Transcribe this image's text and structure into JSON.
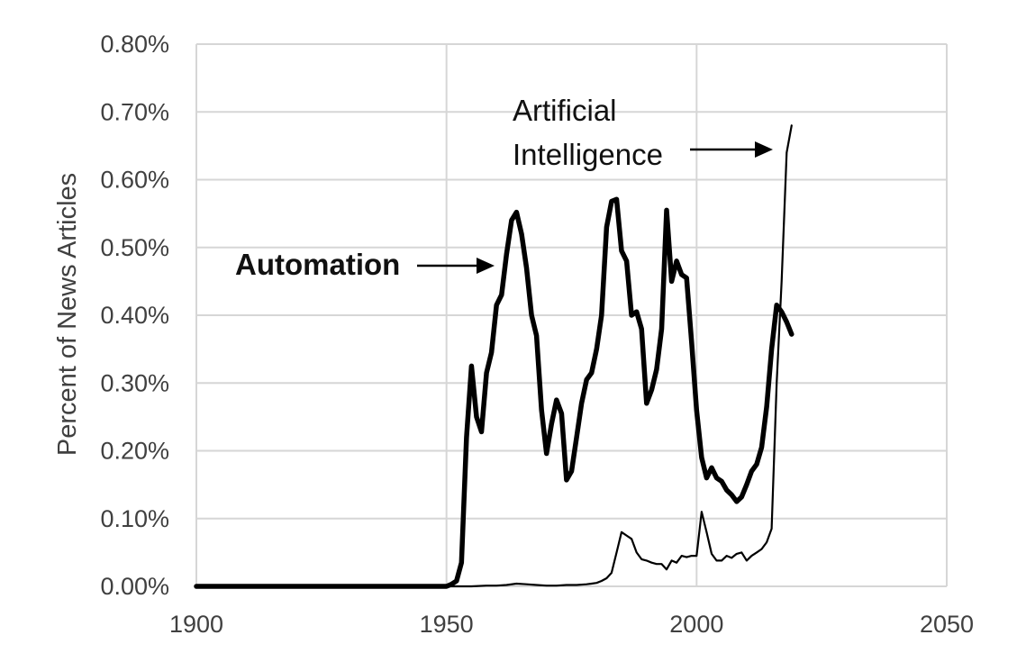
{
  "chart_data": {
    "type": "line",
    "title": "",
    "xlabel": "",
    "ylabel": "Percent of News Articles",
    "xlim": [
      1900,
      2050
    ],
    "ylim": [
      0,
      0.8
    ],
    "x_ticks": [
      1900,
      1950,
      2000,
      2050
    ],
    "y_ticks": [
      0,
      0.1,
      0.2,
      0.3,
      0.4,
      0.5,
      0.6,
      0.7,
      0.8
    ],
    "x_tick_labels": [
      "1900",
      "1950",
      "2000",
      "2050"
    ],
    "y_tick_labels": [
      "0.00%",
      "0.10%",
      "0.20%",
      "0.30%",
      "0.40%",
      "0.50%",
      "0.60%",
      "0.70%",
      "0.80%"
    ],
    "grid": true,
    "legend": "none",
    "annotations": [
      {
        "text": "Automation",
        "series": "Automation"
      },
      {
        "text": "Artificial",
        "series": "Artificial Intelligence"
      },
      {
        "text": "Intelligence",
        "series": "Artificial Intelligence"
      }
    ],
    "series": [
      {
        "name": "Automation",
        "color": "#000000",
        "weight": "thick",
        "x": [
          1900,
          1950,
          1951,
          1952,
          1953,
          1954,
          1955,
          1956,
          1957,
          1958,
          1959,
          1960,
          1961,
          1962,
          1963,
          1964,
          1965,
          1966,
          1967,
          1968,
          1969,
          1970,
          1971,
          1972,
          1973,
          1974,
          1975,
          1976,
          1977,
          1978,
          1979,
          1980,
          1981,
          1982,
          1983,
          1984,
          1985,
          1986,
          1987,
          1988,
          1989,
          1990,
          1991,
          1992,
          1993,
          1994,
          1995,
          1996,
          1997,
          1998,
          1999,
          2000,
          2001,
          2002,
          2003,
          2004,
          2005,
          2006,
          2007,
          2008,
          2009,
          2010,
          2011,
          2012,
          2013,
          2014,
          2015,
          2016,
          2017,
          2018,
          2019
        ],
        "y": [
          0,
          0,
          0.003,
          0.008,
          0.035,
          0.22,
          0.325,
          0.25,
          0.228,
          0.315,
          0.345,
          0.415,
          0.43,
          0.49,
          0.54,
          0.552,
          0.52,
          0.47,
          0.4,
          0.37,
          0.26,
          0.196,
          0.24,
          0.275,
          0.255,
          0.157,
          0.17,
          0.22,
          0.27,
          0.305,
          0.315,
          0.35,
          0.4,
          0.53,
          0.568,
          0.571,
          0.495,
          0.48,
          0.4,
          0.405,
          0.38,
          0.27,
          0.29,
          0.32,
          0.38,
          0.555,
          0.45,
          0.48,
          0.46,
          0.455,
          0.36,
          0.26,
          0.19,
          0.16,
          0.175,
          0.16,
          0.155,
          0.142,
          0.135,
          0.125,
          0.132,
          0.15,
          0.17,
          0.18,
          0.205,
          0.265,
          0.35,
          0.415,
          0.405,
          0.39,
          0.372
        ]
      },
      {
        "name": "Artificial Intelligence",
        "color": "#000000",
        "weight": "thin",
        "x": [
          1900,
          1955,
          1958,
          1960,
          1962,
          1964,
          1966,
          1968,
          1970,
          1972,
          1974,
          1976,
          1978,
          1979,
          1980,
          1981,
          1982,
          1983,
          1984,
          1985,
          1986,
          1987,
          1988,
          1989,
          1990,
          1991,
          1992,
          1993,
          1994,
          1995,
          1996,
          1997,
          1998,
          1999,
          2000,
          2001,
          2002,
          2003,
          2004,
          2005,
          2006,
          2007,
          2008,
          2009,
          2010,
          2011,
          2012,
          2013,
          2014,
          2015,
          2016,
          2017,
          2018,
          2019
        ],
        "y": [
          0,
          0,
          0.001,
          0.001,
          0.002,
          0.004,
          0.003,
          0.002,
          0.001,
          0.001,
          0.002,
          0.002,
          0.003,
          0.004,
          0.005,
          0.008,
          0.012,
          0.02,
          0.05,
          0.08,
          0.075,
          0.07,
          0.05,
          0.04,
          0.038,
          0.035,
          0.033,
          0.033,
          0.025,
          0.038,
          0.035,
          0.045,
          0.043,
          0.045,
          0.045,
          0.11,
          0.08,
          0.048,
          0.038,
          0.038,
          0.045,
          0.042,
          0.048,
          0.05,
          0.038,
          0.045,
          0.05,
          0.055,
          0.065,
          0.085,
          0.3,
          0.45,
          0.64,
          0.68
        ]
      }
    ]
  }
}
